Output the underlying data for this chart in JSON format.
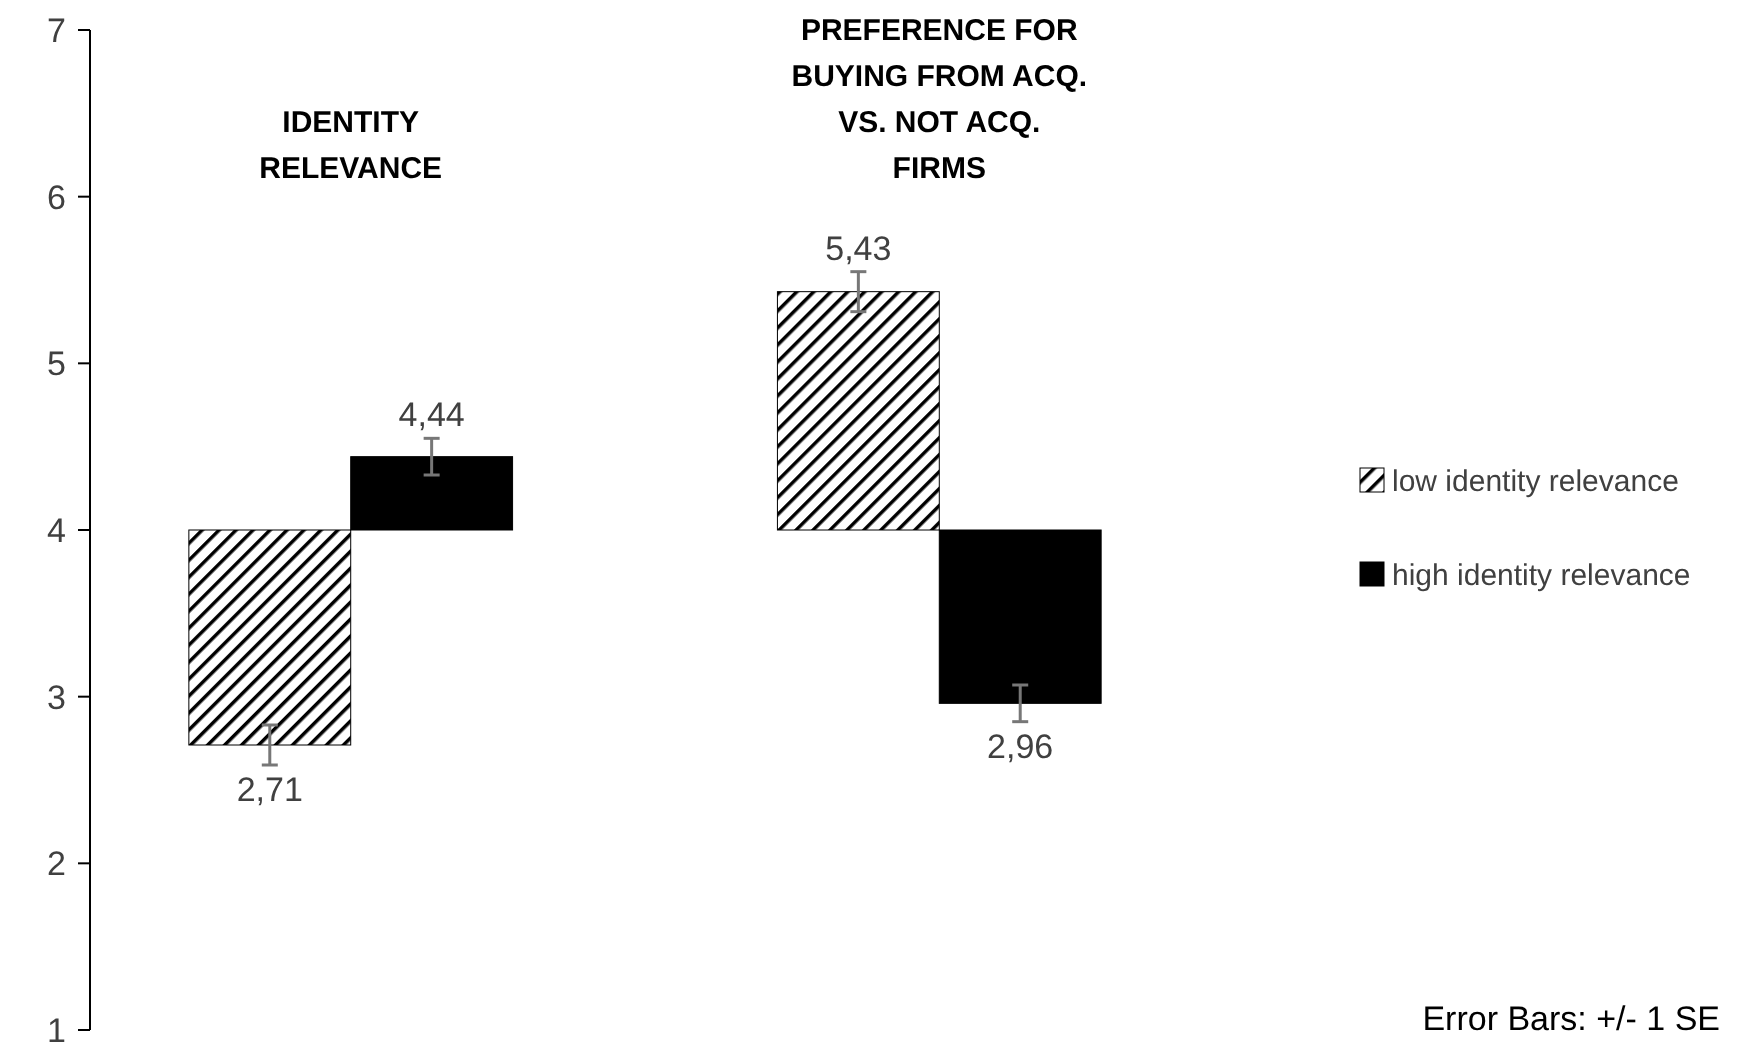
{
  "chart_data": {
    "type": "bar",
    "categories": [
      "IDENTITY RELEVANCE",
      "PREFERENCE FOR BUYING FROM ACQ. VS. NOT ACQ. FIRMS"
    ],
    "series": [
      {
        "name": "low identity relevance",
        "color": "#000000",
        "base": [
          4,
          4
        ],
        "values": [
          -1.29,
          1.43
        ],
        "errors": [
          0.12,
          0.12
        ],
        "value_labels": [
          "2,71",
          "5,43"
        ]
      },
      {
        "name": "high identity relevance",
        "color": "#000000",
        "base": [
          4,
          4
        ],
        "values": [
          0.44,
          -1.04
        ],
        "errors": [
          0.11,
          0.11
        ],
        "value_labels": [
          "4,44",
          "2,96"
        ]
      }
    ],
    "ylim": [
      1,
      7
    ],
    "yticks": [
      1,
      2,
      3,
      4,
      5,
      6,
      7
    ],
    "grid": false,
    "legend": "right",
    "annotations": [
      "Error Bars: +/- 1 SE"
    ]
  }
}
